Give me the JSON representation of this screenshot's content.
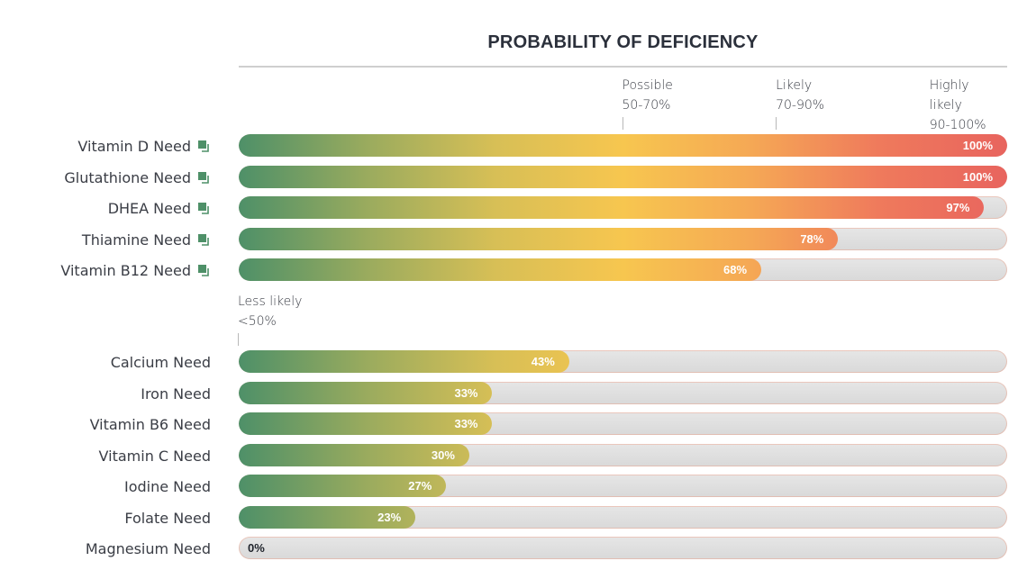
{
  "chart_data": {
    "type": "bar",
    "orientation": "horizontal",
    "title": "PROBABILITY OF DEFICIENCY",
    "xlim": [
      0,
      100
    ],
    "unit": "%",
    "thresholds": [
      {
        "lines": [
          "Possible",
          "50-70%"
        ],
        "value": 50
      },
      {
        "lines": [
          "Likely",
          "70-90%"
        ],
        "value": 70
      },
      {
        "lines": [
          "Highly",
          "likely",
          "90-100%"
        ],
        "value": 90
      },
      {
        "lines": [
          "Less likely",
          "<50%"
        ],
        "value": 0
      }
    ],
    "categories": [
      "Vitamin D Need",
      "Glutathione Need",
      "DHEA Need",
      "Thiamine Need",
      "Vitamin B12 Need",
      "Calcium Need",
      "Iron Need",
      "Vitamin B6 Need",
      "Vitamin C Need",
      "Iodine Need",
      "Folate Need",
      "Magnesium Need"
    ],
    "values": [
      100,
      100,
      97,
      78,
      68,
      43,
      33,
      33,
      30,
      27,
      23,
      0
    ],
    "value_labels": [
      "100%",
      "100%",
      "97%",
      "78%",
      "68%",
      "43%",
      "33%",
      "33%",
      "30%",
      "27%",
      "23%",
      "0%"
    ],
    "has_link_icon": [
      true,
      true,
      true,
      true,
      true,
      false,
      false,
      false,
      false,
      false,
      false,
      false
    ],
    "colors": {
      "gradient_stops": [
        "#4e9068",
        "#9aab5e",
        "#d7bf56",
        "#f7c64f",
        "#f5a855",
        "#ef7a5c",
        "#e8645e"
      ],
      "track": "#dddddd",
      "link_icon": "#4e9068",
      "title": "#2b303b"
    }
  }
}
